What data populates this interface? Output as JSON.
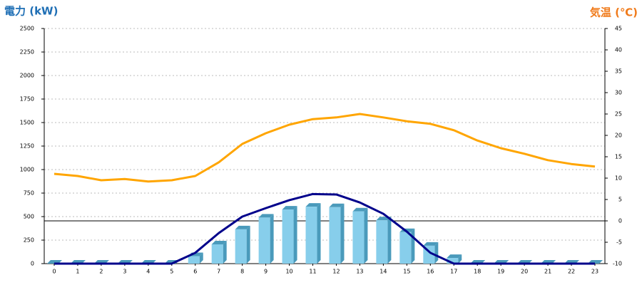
{
  "chart_data": {
    "type": "combo",
    "title_left": "電力 (kW)",
    "title_right": "気温 (℃)",
    "categories": [
      "0",
      "1",
      "2",
      "3",
      "4",
      "5",
      "6",
      "7",
      "8",
      "9",
      "10",
      "11",
      "12",
      "13",
      "14",
      "15",
      "16",
      "17",
      "18",
      "19",
      "20",
      "21",
      "22",
      "23"
    ],
    "series": [
      {
        "type": "bar",
        "axis": "y",
        "color": "#87ceeb",
        "side_color": "#4a9abb",
        "values": [
          0,
          0,
          0,
          0,
          0,
          0,
          80,
          205,
          365,
          490,
          575,
          605,
          600,
          555,
          460,
          335,
          190,
          60,
          0,
          0,
          0,
          0,
          0,
          0
        ]
      },
      {
        "type": "line",
        "axis": "y",
        "color": "#00008b",
        "values": [
          0,
          0,
          0,
          0,
          0,
          0,
          115,
          325,
          500,
          590,
          675,
          740,
          735,
          650,
          530,
          340,
          115,
          0,
          0,
          0,
          0,
          0,
          0,
          0
        ]
      },
      {
        "type": "line",
        "axis": "y2",
        "color": "#ffa500",
        "values": [
          11,
          10.5,
          9.5,
          9.8,
          9.2,
          9.5,
          10.5,
          13.7,
          18,
          20.5,
          22.5,
          23.8,
          24.2,
          25,
          24.2,
          23.3,
          22.7,
          21.2,
          18.8,
          17,
          15.7,
          14.2,
          13.3,
          12.7
        ]
      }
    ],
    "ylim": [
      0,
      2500
    ],
    "yticks": [
      0,
      250,
      500,
      750,
      1000,
      1250,
      1500,
      1750,
      2000,
      2250,
      2500
    ],
    "y2lim": [
      -10,
      45
    ],
    "y2ticks": [
      -10,
      -5,
      0,
      5,
      10,
      15,
      20,
      25,
      30,
      35,
      40,
      45
    ],
    "grid": true
  }
}
